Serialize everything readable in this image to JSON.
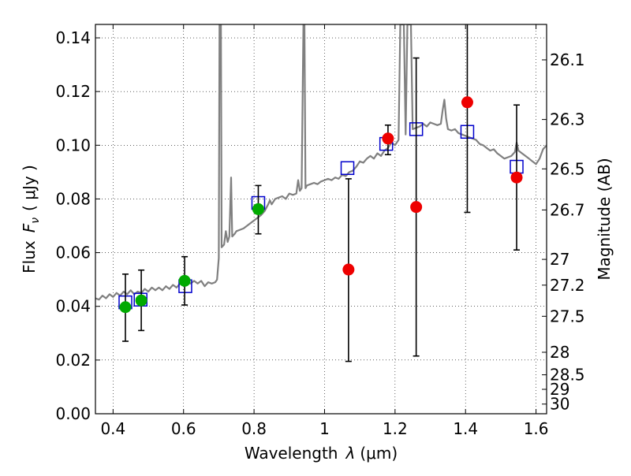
{
  "chart_data": {
    "type": "scatter",
    "xlabel_text": "Wavelength",
    "xlabel_symbol": "λ",
    "xlabel_unit": "(μm)",
    "ylabel_text": "Flux",
    "ylabel_symbol": "F",
    "ylabel_subscript": "ν",
    "ylabel_unit": "( μJy )",
    "y2label": "Magnitude (AB)",
    "xlim": [
      0.35,
      1.63
    ],
    "ylim": [
      0.0,
      0.145
    ],
    "grid": true,
    "x_ticks": [
      0.4,
      0.6,
      0.8,
      1.0,
      1.2,
      1.4,
      1.6
    ],
    "x_tick_labels": [
      "0.4",
      "0.6",
      "0.8",
      "1",
      "1.2",
      "1.4",
      "1.6"
    ],
    "y_ticks": [
      0.0,
      0.02,
      0.04,
      0.06,
      0.08,
      0.1,
      0.12,
      0.14
    ],
    "y_tick_labels": [
      "0.00",
      "0.02",
      "0.04",
      "0.06",
      "0.08",
      "0.10",
      "0.12",
      "0.14"
    ],
    "y2_ticks": [
      {
        "label": "26.1",
        "flux": 0.1318
      },
      {
        "label": "26.3",
        "flux": 0.1096
      },
      {
        "label": "26.5",
        "flux": 0.0912
      },
      {
        "label": "26.7",
        "flux": 0.0759
      },
      {
        "label": "27",
        "flux": 0.0575
      },
      {
        "label": "27.2",
        "flux": 0.0479
      },
      {
        "label": "27.5",
        "flux": 0.0363
      },
      {
        "label": "28",
        "flux": 0.0229
      },
      {
        "label": "28.5",
        "flux": 0.0145
      },
      {
        "label": "29",
        "flux": 0.0091
      },
      {
        "label": "30",
        "flux": 0.0036
      }
    ],
    "spectrum_color": "#808080",
    "spectrum": [
      [
        0.35,
        0.043
      ],
      [
        0.36,
        0.0425
      ],
      [
        0.37,
        0.044
      ],
      [
        0.38,
        0.043
      ],
      [
        0.39,
        0.0445
      ],
      [
        0.4,
        0.0435
      ],
      [
        0.41,
        0.045
      ],
      [
        0.42,
        0.044
      ],
      [
        0.43,
        0.0455
      ],
      [
        0.44,
        0.0445
      ],
      [
        0.45,
        0.046
      ],
      [
        0.46,
        0.0445
      ],
      [
        0.47,
        0.0455
      ],
      [
        0.48,
        0.045
      ],
      [
        0.49,
        0.0465
      ],
      [
        0.5,
        0.0455
      ],
      [
        0.51,
        0.047
      ],
      [
        0.52,
        0.046
      ],
      [
        0.53,
        0.047
      ],
      [
        0.54,
        0.046
      ],
      [
        0.55,
        0.0475
      ],
      [
        0.56,
        0.0465
      ],
      [
        0.57,
        0.048
      ],
      [
        0.58,
        0.047
      ],
      [
        0.59,
        0.0485
      ],
      [
        0.6,
        0.048
      ],
      [
        0.61,
        0.049
      ],
      [
        0.62,
        0.0485
      ],
      [
        0.63,
        0.0495
      ],
      [
        0.64,
        0.0485
      ],
      [
        0.65,
        0.0495
      ],
      [
        0.66,
        0.0475
      ],
      [
        0.67,
        0.049
      ],
      [
        0.68,
        0.0485
      ],
      [
        0.69,
        0.049
      ],
      [
        0.695,
        0.05
      ],
      [
        0.7,
        0.058
      ],
      [
        0.702,
        0.145
      ],
      [
        0.706,
        0.145
      ],
      [
        0.708,
        0.062
      ],
      [
        0.715,
        0.063
      ],
      [
        0.72,
        0.068
      ],
      [
        0.725,
        0.064
      ],
      [
        0.73,
        0.066
      ],
      [
        0.735,
        0.088
      ],
      [
        0.738,
        0.066
      ],
      [
        0.745,
        0.067
      ],
      [
        0.75,
        0.068
      ],
      [
        0.76,
        0.0685
      ],
      [
        0.77,
        0.069
      ],
      [
        0.78,
        0.07
      ],
      [
        0.79,
        0.071
      ],
      [
        0.8,
        0.072
      ],
      [
        0.81,
        0.073
      ],
      [
        0.82,
        0.074
      ],
      [
        0.83,
        0.0755
      ],
      [
        0.84,
        0.078
      ],
      [
        0.845,
        0.0795
      ],
      [
        0.85,
        0.078
      ],
      [
        0.86,
        0.08
      ],
      [
        0.87,
        0.0805
      ],
      [
        0.88,
        0.081
      ],
      [
        0.89,
        0.08
      ],
      [
        0.895,
        0.081
      ],
      [
        0.9,
        0.082
      ],
      [
        0.91,
        0.0815
      ],
      [
        0.92,
        0.082
      ],
      [
        0.925,
        0.087
      ],
      [
        0.93,
        0.083
      ],
      [
        0.935,
        0.084
      ],
      [
        0.94,
        0.145
      ],
      [
        0.943,
        0.145
      ],
      [
        0.946,
        0.084
      ],
      [
        0.95,
        0.085
      ],
      [
        0.96,
        0.0855
      ],
      [
        0.97,
        0.086
      ],
      [
        0.98,
        0.0855
      ],
      [
        0.99,
        0.0865
      ],
      [
        1.0,
        0.087
      ],
      [
        1.01,
        0.0875
      ],
      [
        1.02,
        0.087
      ],
      [
        1.03,
        0.088
      ],
      [
        1.04,
        0.0875
      ],
      [
        1.05,
        0.089
      ],
      [
        1.06,
        0.0885
      ],
      [
        1.07,
        0.09
      ],
      [
        1.08,
        0.0905
      ],
      [
        1.09,
        0.092
      ],
      [
        1.1,
        0.094
      ],
      [
        1.11,
        0.0935
      ],
      [
        1.12,
        0.095
      ],
      [
        1.13,
        0.096
      ],
      [
        1.14,
        0.095
      ],
      [
        1.15,
        0.097
      ],
      [
        1.16,
        0.096
      ],
      [
        1.17,
        0.098
      ],
      [
        1.18,
        0.099
      ],
      [
        1.19,
        0.101
      ],
      [
        1.2,
        0.1
      ],
      [
        1.21,
        0.102
      ],
      [
        1.215,
        0.145
      ],
      [
        1.225,
        0.145
      ],
      [
        1.23,
        0.104
      ],
      [
        1.235,
        0.145
      ],
      [
        1.245,
        0.145
      ],
      [
        1.25,
        0.106
      ],
      [
        1.26,
        0.1065
      ],
      [
        1.27,
        0.107
      ],
      [
        1.28,
        0.108
      ],
      [
        1.29,
        0.107
      ],
      [
        1.3,
        0.1085
      ],
      [
        1.31,
        0.108
      ],
      [
        1.32,
        0.1075
      ],
      [
        1.33,
        0.108
      ],
      [
        1.335,
        0.113
      ],
      [
        1.34,
        0.117
      ],
      [
        1.345,
        0.11
      ],
      [
        1.35,
        0.106
      ],
      [
        1.36,
        0.1055
      ],
      [
        1.37,
        0.106
      ],
      [
        1.38,
        0.1045
      ],
      [
        1.39,
        0.104
      ],
      [
        1.4,
        0.1035
      ],
      [
        1.41,
        0.103
      ],
      [
        1.42,
        0.1025
      ],
      [
        1.43,
        0.102
      ],
      [
        1.44,
        0.1005
      ],
      [
        1.45,
        0.1
      ],
      [
        1.46,
        0.099
      ],
      [
        1.47,
        0.098
      ],
      [
        1.48,
        0.0985
      ],
      [
        1.49,
        0.097
      ],
      [
        1.5,
        0.096
      ],
      [
        1.51,
        0.095
      ],
      [
        1.52,
        0.0955
      ],
      [
        1.53,
        0.096
      ],
      [
        1.54,
        0.0975
      ],
      [
        1.545,
        0.101
      ],
      [
        1.55,
        0.098
      ],
      [
        1.56,
        0.097
      ],
      [
        1.57,
        0.096
      ],
      [
        1.58,
        0.095
      ],
      [
        1.59,
        0.094
      ],
      [
        1.6,
        0.093
      ],
      [
        1.61,
        0.095
      ],
      [
        1.62,
        0.0985
      ],
      [
        1.63,
        0.1
      ]
    ],
    "model_squares": {
      "color": "#0000cc",
      "points": [
        {
          "x": 0.435,
          "y": 0.0415
        },
        {
          "x": 0.478,
          "y": 0.0425
        },
        {
          "x": 0.605,
          "y": 0.0475
        },
        {
          "x": 0.812,
          "y": 0.0785
        },
        {
          "x": 1.065,
          "y": 0.0915
        },
        {
          "x": 1.175,
          "y": 0.1005
        },
        {
          "x": 1.26,
          "y": 0.106
        },
        {
          "x": 1.405,
          "y": 0.105
        },
        {
          "x": 1.545,
          "y": 0.092
        }
      ]
    },
    "observed_green": {
      "color": "#00aa00",
      "points": [
        {
          "x": 0.435,
          "y": 0.0397,
          "ylo": 0.027,
          "yhi": 0.052,
          "yhi_cap": 0.0525
        },
        {
          "x": 0.48,
          "y": 0.0422,
          "ylo": 0.031,
          "yhi": 0.0535
        },
        {
          "x": 0.603,
          "y": 0.0495,
          "ylo": 0.0405,
          "yhi": 0.0585
        },
        {
          "x": 0.812,
          "y": 0.0762,
          "ylo": 0.067,
          "yhi": 0.085
        }
      ]
    },
    "observed_red": {
      "color": "#ee0000",
      "points": [
        {
          "x": 1.068,
          "y": 0.0537,
          "ylo": 0.0195,
          "yhi": 0.0875
        },
        {
          "x": 1.18,
          "y": 0.1025,
          "ylo": 0.0965,
          "yhi": 0.1075
        },
        {
          "x": 1.26,
          "y": 0.077,
          "ylo": 0.0215,
          "yhi": 0.1325
        },
        {
          "x": 1.405,
          "y": 0.116,
          "ylo": 0.075,
          "yhi": 0.145
        },
        {
          "x": 1.545,
          "y": 0.088,
          "ylo": 0.061,
          "yhi": 0.115
        }
      ]
    }
  }
}
